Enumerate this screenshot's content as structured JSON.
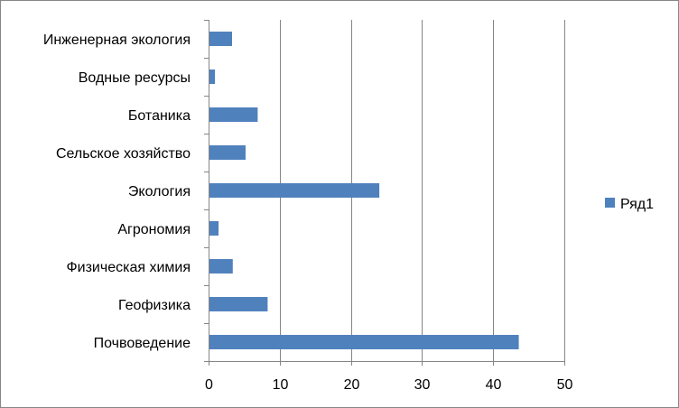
{
  "chart_data": {
    "type": "bar",
    "orientation": "horizontal",
    "categories": [
      "Инженерная экология",
      "Водные ресурсы",
      "Ботаника",
      "Сельское хозяйство",
      "Экология",
      "Агрономия",
      "Физическая химия",
      "Геофизика",
      "Почвоведение"
    ],
    "series": [
      {
        "name": "Ряд1",
        "color": "#4f81bd",
        "values": [
          3.3,
          0.9,
          6.9,
          5.2,
          24.0,
          1.4,
          3.4,
          8.3,
          43.6
        ]
      }
    ],
    "xlim": [
      0,
      50
    ],
    "xticks": [
      "0",
      "10",
      "20",
      "30",
      "40",
      "50"
    ],
    "grid": true,
    "legend": "right"
  }
}
